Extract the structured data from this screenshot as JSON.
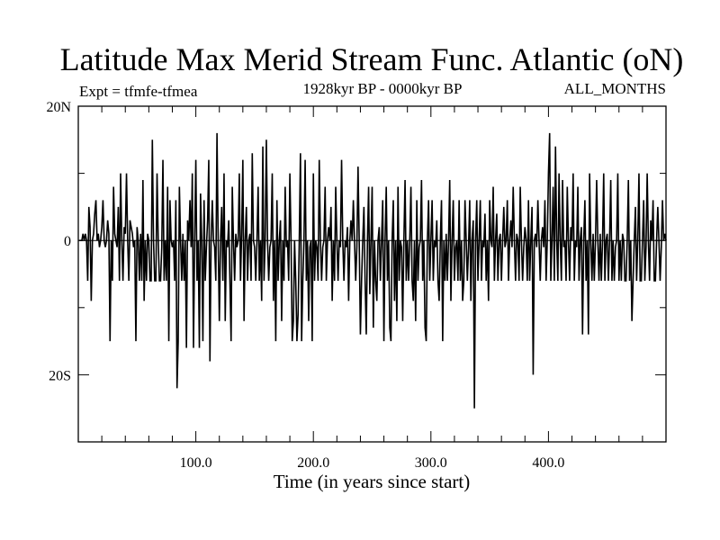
{
  "chart_data": {
    "type": "line",
    "title": "Latitude Max Merid Stream Func. Atlantic (oN)",
    "subtitle_left": "Expt = tfmfe-tfmea",
    "subtitle_center": "1928kyr BP - 0000kyr BP",
    "subtitle_right": "ALL_MONTHS",
    "xlabel": "Time (in years since start)",
    "ylabel": "",
    "xlim": [
      0,
      500
    ],
    "ylim": [
      -30,
      20
    ],
    "x_ticks": [
      100,
      200,
      300,
      400
    ],
    "x_tick_labels": [
      "100.0",
      "200.0",
      "300.0",
      "400.0"
    ],
    "y_ticks": [
      20,
      0,
      -20
    ],
    "y_tick_labels": [
      "20N",
      "0",
      "20S"
    ],
    "x_minor_step": 20,
    "y_minor_step": 10,
    "grid": false,
    "reference_line": 0,
    "series": [
      {
        "name": "latitude_max_stream_function",
        "x_start": 1,
        "x_step": 1,
        "color": "#000000",
        "values": [
          0,
          0,
          0,
          1,
          0,
          1,
          0,
          -6,
          5,
          2,
          -9,
          0,
          1,
          4,
          6,
          0,
          1,
          -1,
          0,
          2,
          6,
          0,
          -1,
          0,
          3,
          1,
          -15,
          0,
          -6,
          8,
          1,
          0,
          -1,
          5,
          -6,
          10,
          0,
          -6,
          2,
          1,
          10,
          0,
          -6,
          3,
          2,
          1,
          -1,
          0,
          -15,
          2,
          0,
          -6,
          1,
          -6,
          9,
          -9,
          0,
          -6,
          1,
          0,
          -6,
          -6,
          15,
          0,
          -6,
          -6,
          10,
          0,
          -6,
          -6,
          -1,
          12,
          -6,
          0,
          -6,
          8,
          -15,
          6,
          0,
          -1,
          0,
          -6,
          6,
          -22,
          -15,
          8,
          0,
          -6,
          1,
          -6,
          0,
          -16,
          3,
          0,
          6,
          -1,
          10,
          -16,
          0,
          12,
          -6,
          0,
          -16,
          7,
          0,
          -15,
          6,
          -6,
          -1,
          3,
          12,
          -18,
          0,
          6,
          0,
          -1,
          -6,
          16,
          0,
          -12,
          0,
          5,
          -6,
          10,
          -12,
          0,
          -1,
          3,
          -6,
          -15,
          8,
          0,
          -6,
          1,
          -1,
          0,
          10,
          -6,
          1,
          12,
          -12,
          0,
          5,
          -6,
          0,
          1,
          -6,
          13,
          0,
          -1,
          -6,
          0,
          8,
          -6,
          0,
          -9,
          14,
          -6,
          0,
          15,
          0,
          -6,
          -1,
          0,
          10,
          -9,
          0,
          -15,
          6,
          -6,
          0,
          3,
          -12,
          0,
          -6,
          8,
          -1,
          0,
          -6,
          10,
          0,
          -15,
          -12,
          0,
          -6,
          -15,
          -11,
          0,
          13,
          -15,
          -6,
          0,
          12,
          -6,
          0,
          -12,
          -1,
          0,
          -15,
          10,
          -6,
          0,
          -1,
          -6,
          12,
          0,
          -6,
          -1,
          0,
          8,
          -6,
          0,
          2,
          0,
          5,
          -9,
          0,
          -6,
          8,
          0,
          -6,
          0,
          -1,
          12,
          0,
          -6,
          0,
          -1,
          2,
          -9,
          0,
          3,
          0,
          6,
          0,
          -6,
          -1,
          11,
          0,
          -14,
          -6,
          0,
          5,
          -6,
          -14,
          0,
          8,
          -8,
          0,
          8,
          -13,
          0,
          -6,
          -9,
          0,
          2,
          -6,
          0,
          6,
          -15,
          0,
          8,
          -6,
          0,
          -13,
          -15,
          0,
          6,
          -9,
          0,
          -12,
          8,
          -6,
          0,
          -1,
          -12,
          0,
          9,
          -6,
          0,
          -6,
          0,
          8,
          -6,
          -9,
          0,
          -12,
          6,
          -6,
          -1,
          0,
          9,
          -6,
          0,
          -13,
          -15,
          0,
          6,
          -6,
          0,
          6,
          -6,
          0,
          -1,
          3,
          -6,
          -9,
          0,
          6,
          -15,
          0,
          -6,
          1,
          -6,
          0,
          9,
          -9,
          0,
          6,
          -6,
          -1,
          0,
          -6,
          6,
          -6,
          0,
          -9,
          -6,
          6,
          0,
          -6,
          -1,
          6,
          -9,
          0,
          3,
          -25,
          0,
          6,
          -6,
          0,
          6,
          -6,
          0,
          -1,
          4,
          -6,
          0,
          -9,
          6,
          0,
          -1,
          8,
          -6,
          0,
          4,
          -6,
          0,
          1,
          -6,
          0,
          5,
          -1,
          0,
          6,
          -6,
          0,
          3,
          -1,
          8,
          0,
          -6,
          1,
          0,
          -6,
          8,
          0,
          -6,
          -1,
          2,
          0,
          -6,
          6,
          -6,
          0,
          5,
          -20,
          0,
          1,
          -1,
          6,
          0,
          -6,
          0,
          2,
          -1,
          6,
          -6,
          0,
          10,
          16,
          -6,
          0,
          8,
          -6,
          14,
          0,
          -6,
          10,
          0,
          -6,
          9,
          -1,
          0,
          -6,
          8,
          0,
          -6,
          2,
          0,
          10,
          -6,
          0,
          -1,
          8,
          -6,
          0,
          2,
          -14,
          0,
          6,
          -6,
          0,
          -14,
          10,
          0,
          -6,
          1,
          -6,
          0,
          9,
          0,
          -6,
          1,
          -6,
          0,
          10,
          -6,
          0,
          1,
          -6,
          0,
          9,
          -6,
          0,
          -6,
          -1,
          0,
          10,
          -6,
          0,
          -6,
          1,
          0,
          -6,
          -6,
          0,
          9,
          -6,
          0,
          -12,
          -6,
          0,
          5,
          -6,
          0,
          10,
          -6,
          -6,
          0,
          6,
          -6,
          -1,
          10,
          0,
          -6,
          3,
          0,
          6,
          -6,
          -6,
          0,
          5,
          0,
          -6,
          -1,
          6,
          0,
          1,
          0
        ]
      }
    ]
  }
}
